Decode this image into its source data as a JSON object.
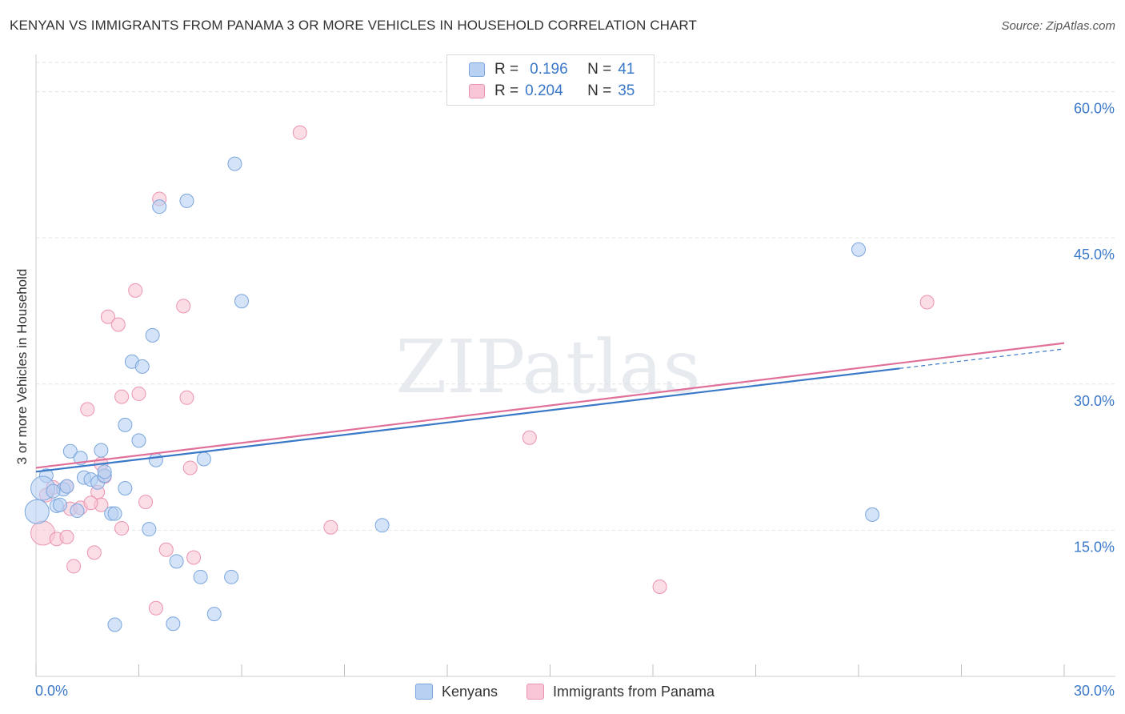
{
  "title": "KENYAN VS IMMIGRANTS FROM PANAMA 3 OR MORE VEHICLES IN HOUSEHOLD CORRELATION CHART",
  "source": "Source: ZipAtlas.com",
  "watermark": "ZIPatlas",
  "legend": {
    "r_label": "R =",
    "n_label": "N =",
    "rows": [
      {
        "r": "0.196",
        "n": "41",
        "color": "#a9c6ee"
      },
      {
        "r": "0.204",
        "n": "35",
        "color": "#f6b9cd"
      }
    ]
  },
  "bottom_legend": [
    "Kenyans",
    "Immigrants from Panama"
  ],
  "colors": {
    "kenyan_fill": "#b8d0f1",
    "kenyan_stroke": "#7aa6dd",
    "kenyan_line": "#3a78c8",
    "panama_fill": "#f8c6d6",
    "panama_stroke": "#eb93b0",
    "panama_line": "#e0709a",
    "grid": "#e2e2e2",
    "tick_text": "#3a78c8"
  },
  "chart_data": {
    "type": "scatter",
    "title": "KENYAN VS IMMIGRANTS FROM PANAMA 3 OR MORE VEHICLES IN HOUSEHOLD CORRELATION CHART",
    "xlabel": "",
    "ylabel": "3 or more Vehicles in Household",
    "xlim": [
      0,
      30
    ],
    "ylim": [
      0,
      63
    ],
    "x_tick_labels": [
      "0.0%",
      "30.0%"
    ],
    "y_ticks": [
      15,
      30,
      45,
      60
    ],
    "y_tick_labels": [
      "15.0%",
      "30.0%",
      "45.0%",
      "60.0%"
    ],
    "series": [
      {
        "name": "Kenyans",
        "r": 0.196,
        "n": 41,
        "trend": {
          "x0": 0.0,
          "y0": 21.0,
          "x1": 25.2,
          "y1": 31.6,
          "dash_to_x": 30.0,
          "dash_to_y": 33.6
        },
        "points": [
          [
            0.03,
            16.9,
            "large"
          ],
          [
            0.3,
            20.6
          ],
          [
            0.2,
            19.3,
            "large"
          ],
          [
            0.6,
            17.5
          ],
          [
            0.8,
            19.2
          ],
          [
            0.9,
            19.5
          ],
          [
            1.0,
            23.1
          ],
          [
            1.3,
            22.4
          ],
          [
            1.4,
            20.4
          ],
          [
            1.6,
            20.2
          ],
          [
            1.8,
            19.9
          ],
          [
            1.9,
            23.2
          ],
          [
            2.0,
            20.6
          ],
          [
            2.2,
            16.7
          ],
          [
            2.3,
            16.7
          ],
          [
            2.6,
            19.3
          ],
          [
            2.6,
            25.8
          ],
          [
            2.8,
            32.3
          ],
          [
            3.0,
            24.2
          ],
          [
            3.1,
            31.8
          ],
          [
            2.3,
            5.3
          ],
          [
            3.3,
            15.1
          ],
          [
            3.4,
            35.0
          ],
          [
            3.5,
            22.2
          ],
          [
            3.6,
            48.2
          ],
          [
            4.1,
            11.8
          ],
          [
            4.0,
            5.4
          ],
          [
            4.4,
            48.8
          ],
          [
            4.8,
            10.2
          ],
          [
            4.9,
            22.3
          ],
          [
            5.2,
            6.4
          ],
          [
            5.7,
            10.2
          ],
          [
            5.8,
            52.6
          ],
          [
            6.0,
            38.5
          ],
          [
            10.1,
            15.5
          ],
          [
            24.0,
            43.8
          ],
          [
            24.4,
            16.6
          ],
          [
            1.2,
            17.0
          ],
          [
            0.5,
            19.0
          ],
          [
            2.0,
            21.0
          ],
          [
            0.7,
            17.6
          ]
        ]
      },
      {
        "name": "Immigrants from Panama",
        "r": 0.204,
        "n": 35,
        "trend": {
          "x0": 0.0,
          "y0": 21.4,
          "x1": 30.0,
          "y1": 34.2
        },
        "points": [
          [
            0.2,
            14.7,
            "large"
          ],
          [
            0.3,
            18.6
          ],
          [
            0.5,
            19.4
          ],
          [
            0.6,
            14.1
          ],
          [
            0.9,
            14.3
          ],
          [
            1.0,
            17.2
          ],
          [
            1.1,
            11.3
          ],
          [
            1.3,
            17.3
          ],
          [
            1.5,
            27.4
          ],
          [
            1.7,
            12.7
          ],
          [
            1.8,
            18.9
          ],
          [
            1.9,
            17.6
          ],
          [
            1.9,
            21.8
          ],
          [
            2.0,
            20.5
          ],
          [
            2.1,
            36.9
          ],
          [
            2.4,
            36.1
          ],
          [
            2.5,
            28.7
          ],
          [
            2.5,
            15.2
          ],
          [
            2.9,
            39.6
          ],
          [
            3.0,
            29.0
          ],
          [
            3.2,
            17.9
          ],
          [
            3.5,
            7.0
          ],
          [
            3.6,
            49.0
          ],
          [
            3.8,
            13.0
          ],
          [
            4.3,
            38.0
          ],
          [
            4.4,
            28.6
          ],
          [
            4.5,
            21.4
          ],
          [
            4.6,
            12.2
          ],
          [
            7.7,
            55.8
          ],
          [
            8.6,
            15.3
          ],
          [
            14.4,
            24.5
          ],
          [
            18.2,
            9.2
          ],
          [
            26.0,
            38.4
          ],
          [
            0.9,
            19.5
          ],
          [
            1.6,
            17.8
          ]
        ]
      }
    ]
  }
}
